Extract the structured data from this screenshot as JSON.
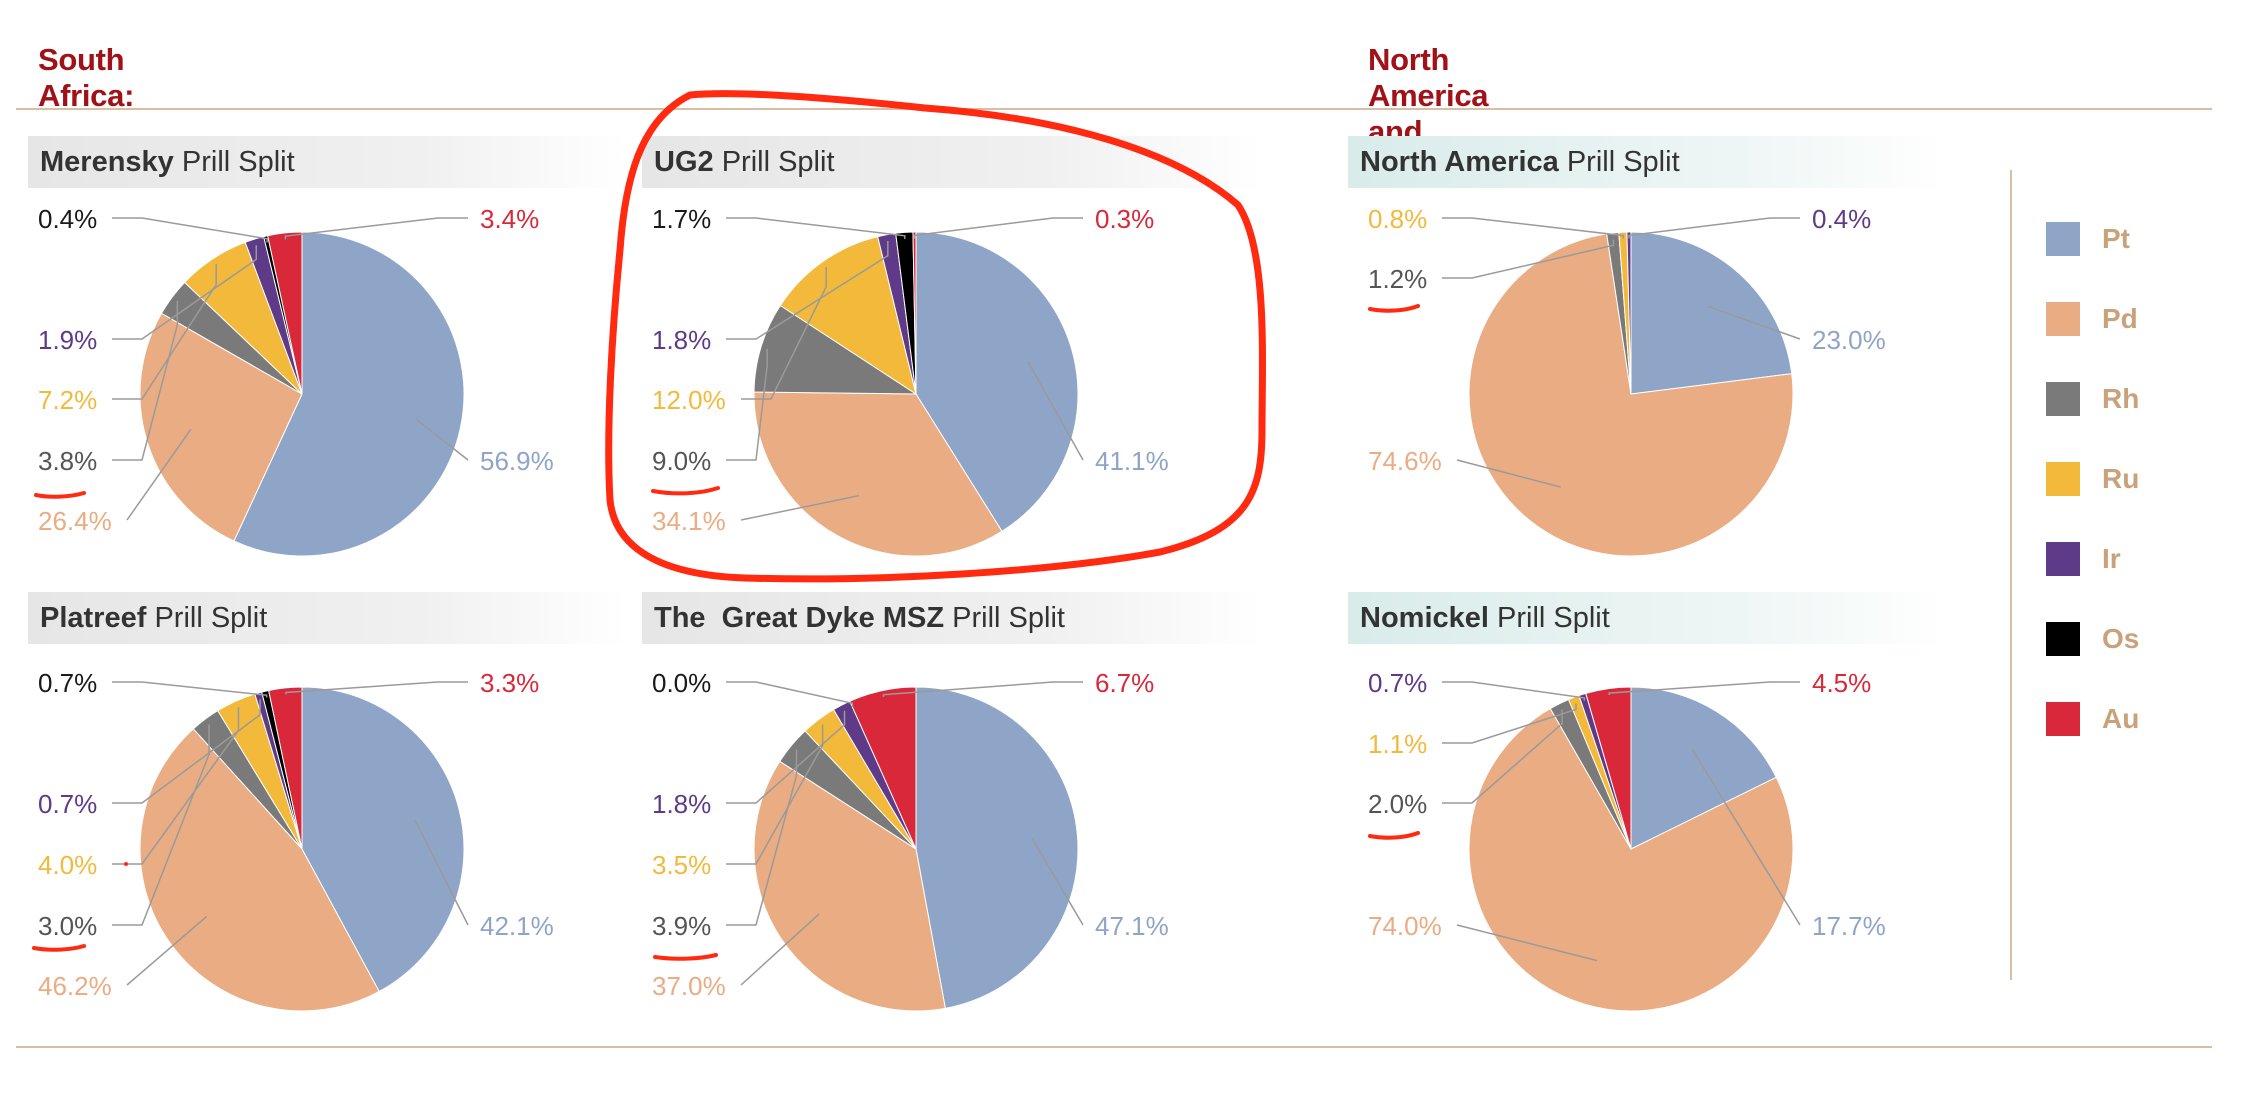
{
  "regions": {
    "south_africa": "South Africa:",
    "north_america_russia": "North America and Russia:"
  },
  "panels": [
    {
      "bold": "Merensky",
      "rest": " Prill Split"
    },
    {
      "bold": "UG2",
      "rest": " Prill Split"
    },
    {
      "bold": "North America",
      "rest": " Prill Split"
    },
    {
      "bold": "Platreef",
      "rest": " Prill Split"
    },
    {
      "bold": "The  Great Dyke MSZ",
      "rest": " Prill Split"
    },
    {
      "bold": "Nomickel",
      "rest": " Prill Split"
    }
  ],
  "legend": [
    {
      "label": "Pt",
      "color": "#8fa5c8"
    },
    {
      "label": "Pd",
      "color": "#eaac82"
    },
    {
      "label": "Rh",
      "color": "#7a7a7a"
    },
    {
      "label": "Ru",
      "color": "#f2b93b"
    },
    {
      "label": "Ir",
      "color": "#5e3a88"
    },
    {
      "label": "Os",
      "color": "#000000"
    },
    {
      "label": "Au",
      "color": "#d9283a"
    }
  ],
  "colors": {
    "accent_red": "#a01218",
    "annotation_red": "#ff2a10",
    "divider": "#d8bfa4",
    "label_dark": "#1a1a1a",
    "label_grey": "#555555"
  },
  "chart_data": [
    {
      "type": "pie",
      "title": "Merensky Prill Split",
      "categories": [
        "Pt",
        "Pd",
        "Rh",
        "Ru",
        "Ir",
        "Os",
        "Au"
      ],
      "values": [
        56.9,
        26.4,
        3.8,
        7.2,
        1.9,
        0.4,
        3.4
      ],
      "labels": [
        "56.9%",
        "26.4%",
        "3.8%",
        "7.2%",
        "1.9%",
        "0.4%",
        "3.4%"
      ]
    },
    {
      "type": "pie",
      "title": "UG2 Prill Split",
      "categories": [
        "Pt",
        "Pd",
        "Rh",
        "Ru",
        "Ir",
        "Os",
        "Au"
      ],
      "values": [
        41.1,
        34.1,
        9.0,
        12.0,
        1.8,
        1.7,
        0.3
      ],
      "labels": [
        "41.1%",
        "34.1%",
        "9.0%",
        "12.0%",
        "1.8%",
        "1.7%",
        "0.3%"
      ]
    },
    {
      "type": "pie",
      "title": "North America Prill Split",
      "categories": [
        "Pt",
        "Pd",
        "Rh",
        "Ru",
        "Ir",
        "Os",
        "Au"
      ],
      "values": [
        23.0,
        74.6,
        1.2,
        0.8,
        0.4,
        0.0,
        0.0
      ],
      "labels": [
        "23.0%",
        "74.6%",
        "1.2%",
        "0.8%",
        "0.4%",
        "",
        ""
      ]
    },
    {
      "type": "pie",
      "title": "Platreef Prill Split",
      "categories": [
        "Pt",
        "Pd",
        "Rh",
        "Ru",
        "Ir",
        "Os",
        "Au"
      ],
      "values": [
        42.1,
        46.2,
        3.0,
        4.0,
        0.7,
        0.7,
        3.3
      ],
      "labels": [
        "42.1%",
        "46.2%",
        "3.0%",
        "4.0%",
        "0.7%",
        "0.7%",
        "3.3%"
      ]
    },
    {
      "type": "pie",
      "title": "The  Great Dyke MSZ Prill Split",
      "categories": [
        "Pt",
        "Pd",
        "Rh",
        "Ru",
        "Ir",
        "Os",
        "Au"
      ],
      "values": [
        47.1,
        37.0,
        3.9,
        3.5,
        1.8,
        0.0,
        6.7
      ],
      "labels": [
        "47.1%",
        "37.0%",
        "3.9%",
        "3.5%",
        "1.8%",
        "0.0%",
        "6.7%"
      ]
    },
    {
      "type": "pie",
      "title": "Nomickel Prill Split",
      "categories": [
        "Pt",
        "Pd",
        "Rh",
        "Ru",
        "Ir",
        "Os",
        "Au"
      ],
      "values": [
        17.7,
        74.0,
        2.0,
        1.1,
        0.7,
        0.0,
        4.5
      ],
      "labels": [
        "17.7%",
        "74.0%",
        "2.0%",
        "1.1%",
        "0.7%",
        "",
        "4.5%"
      ]
    }
  ]
}
